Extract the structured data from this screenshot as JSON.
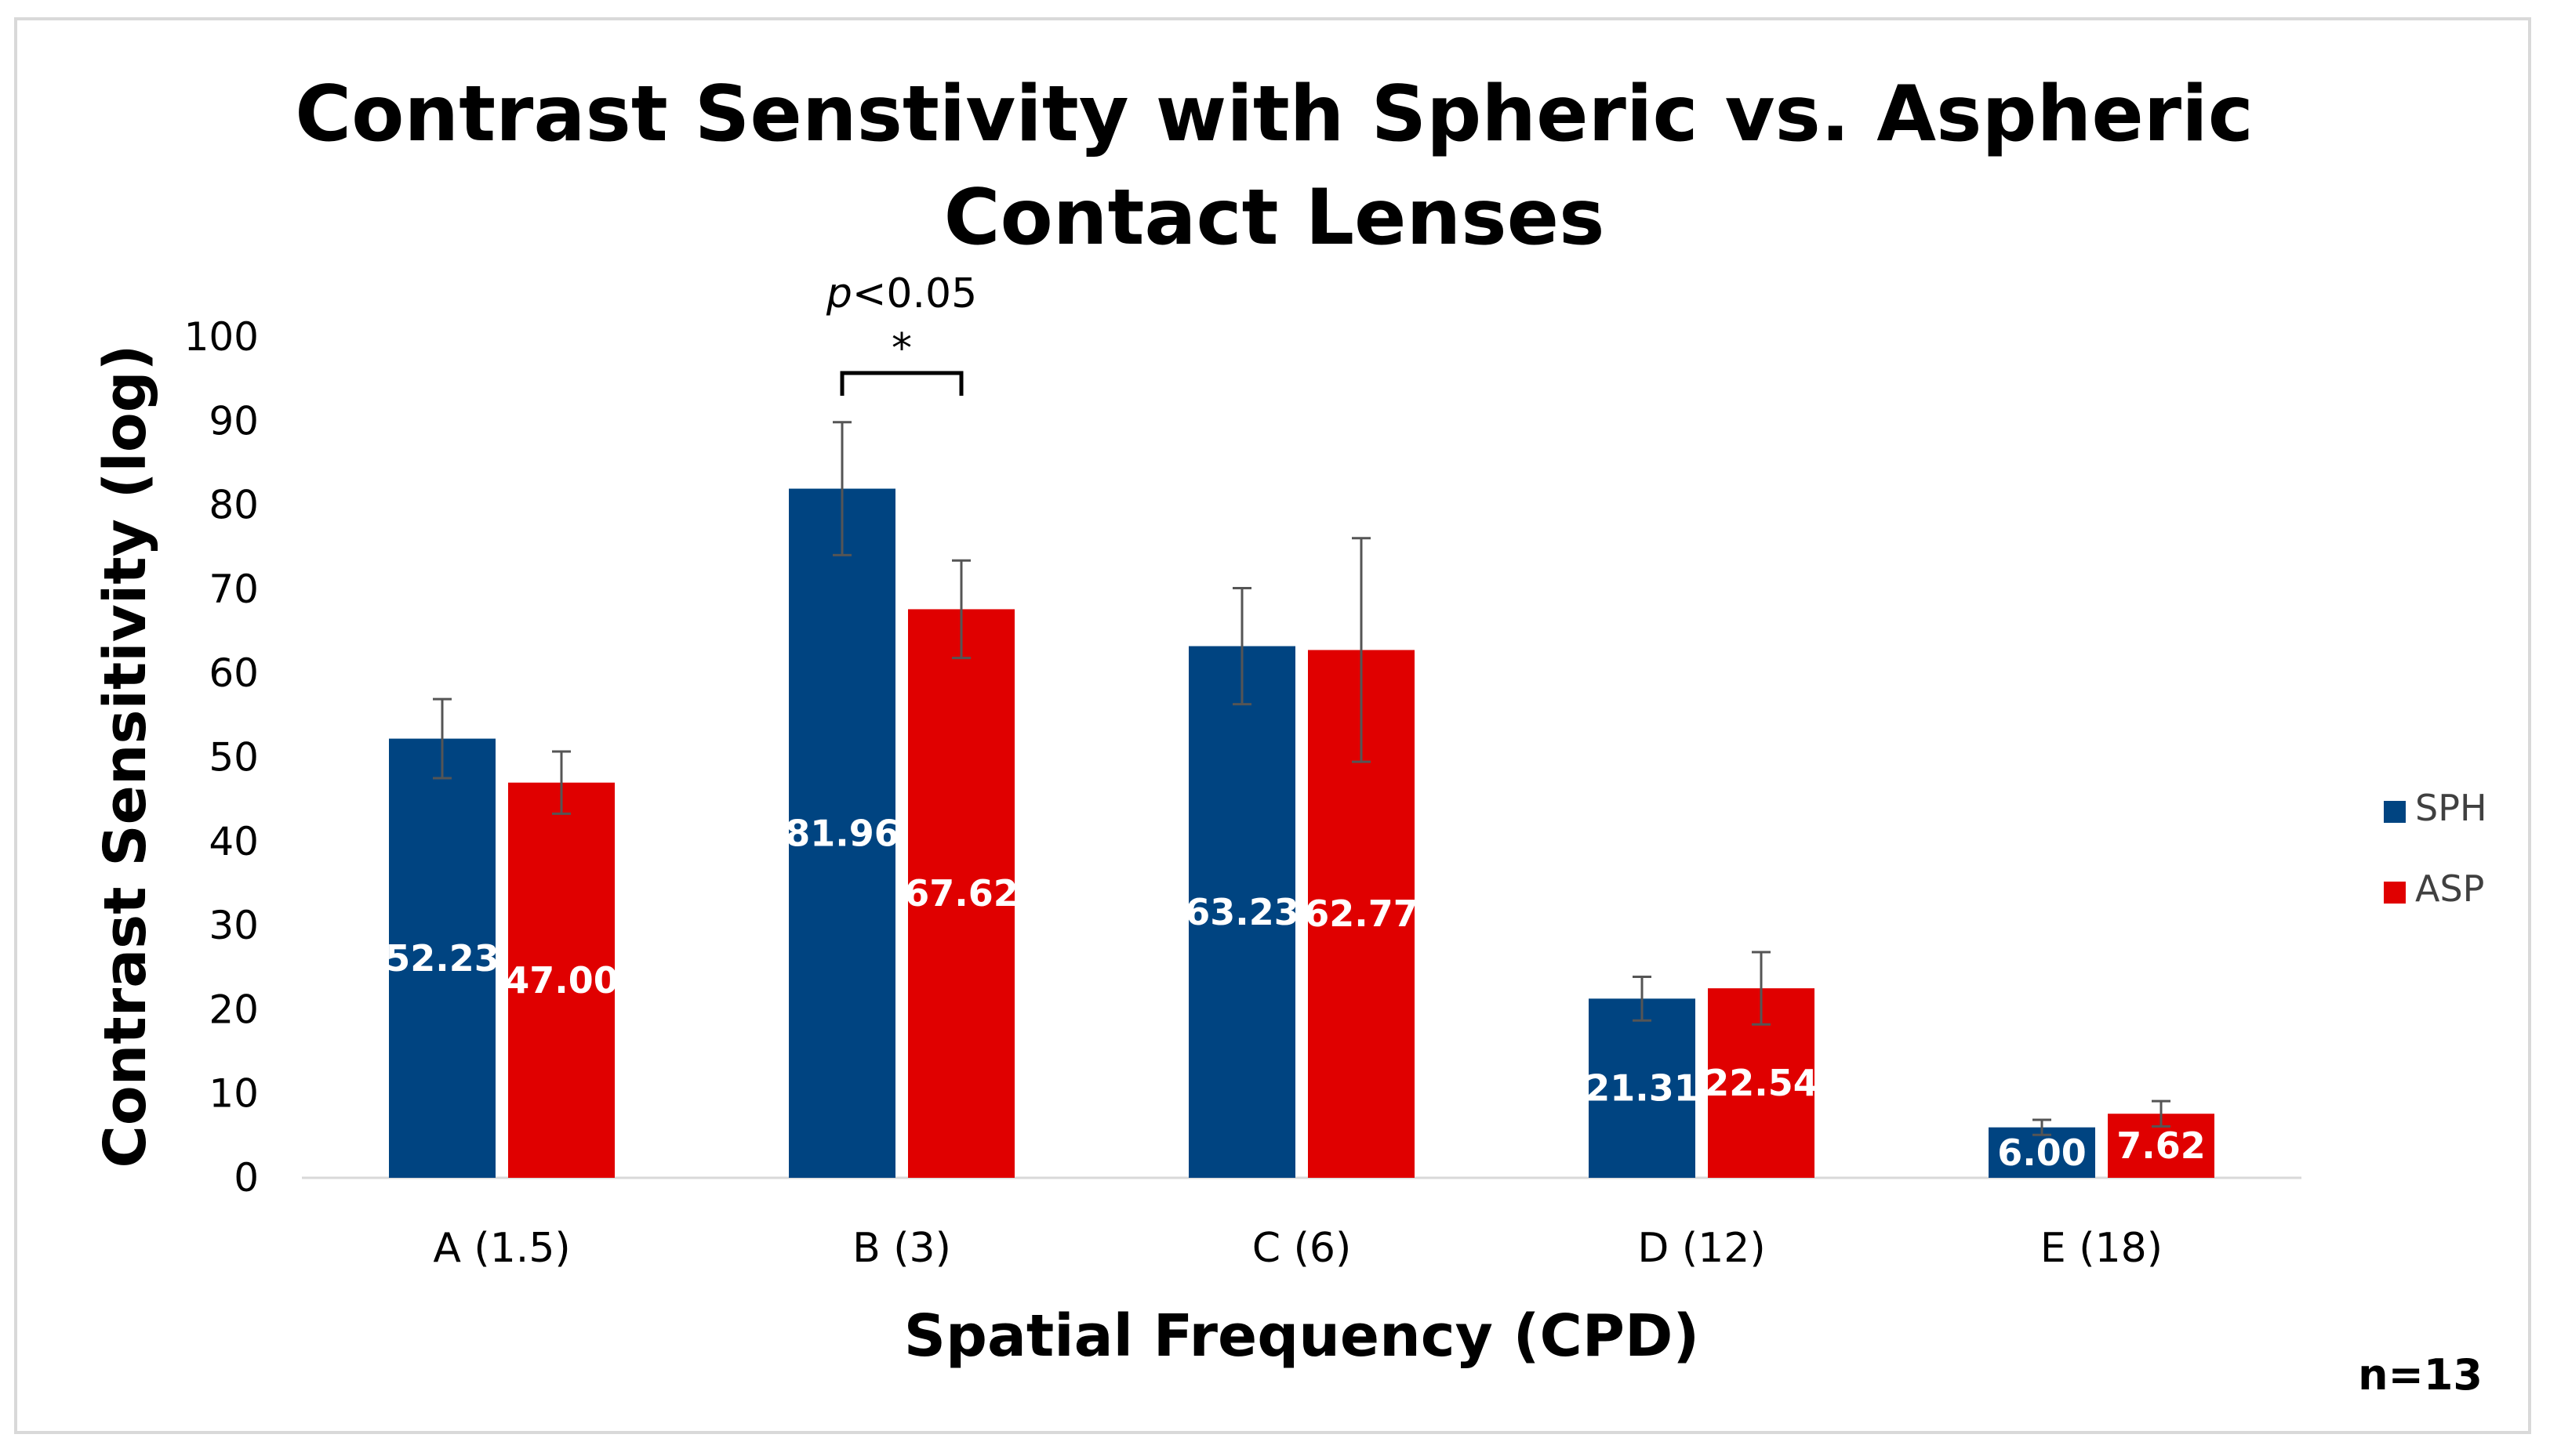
{
  "chart_data": {
    "type": "bar",
    "title": "Contrast Senstivity with Spheric vs. Aspheric Contact Lenses",
    "xlabel": "Spatial Frequency (CPD)",
    "ylabel": "Contrast Sensitivity (log)",
    "ylim": [
      0,
      100
    ],
    "yticks": [
      0,
      10,
      20,
      30,
      40,
      50,
      60,
      70,
      80,
      90,
      100
    ],
    "grid": false,
    "legend_position": "right",
    "categories": [
      "A (1.5)",
      "B (3)",
      "C (6)",
      "D (12)",
      "E (18)"
    ],
    "series": [
      {
        "name": "SPH",
        "color": "#004481",
        "values": [
          52.23,
          81.96,
          63.23,
          21.31,
          6.0
        ],
        "labels": [
          "52.23",
          "81.96",
          "63.23",
          "21.31",
          "6.00"
        ],
        "error": [
          4.7,
          7.9,
          6.9,
          2.6,
          0.9
        ]
      },
      {
        "name": "ASP",
        "color": "#e00000",
        "values": [
          47.0,
          67.62,
          62.77,
          22.54,
          7.62
        ],
        "labels": [
          "47.00",
          "67.62",
          "62.77",
          "22.54",
          "7.62"
        ],
        "error": [
          3.7,
          5.8,
          13.3,
          4.3,
          1.5
        ]
      }
    ],
    "annotations": [
      {
        "text_italic": "p",
        "text": "<0.05",
        "star": "*",
        "category": "B (3)"
      }
    ],
    "note": "n=13"
  }
}
